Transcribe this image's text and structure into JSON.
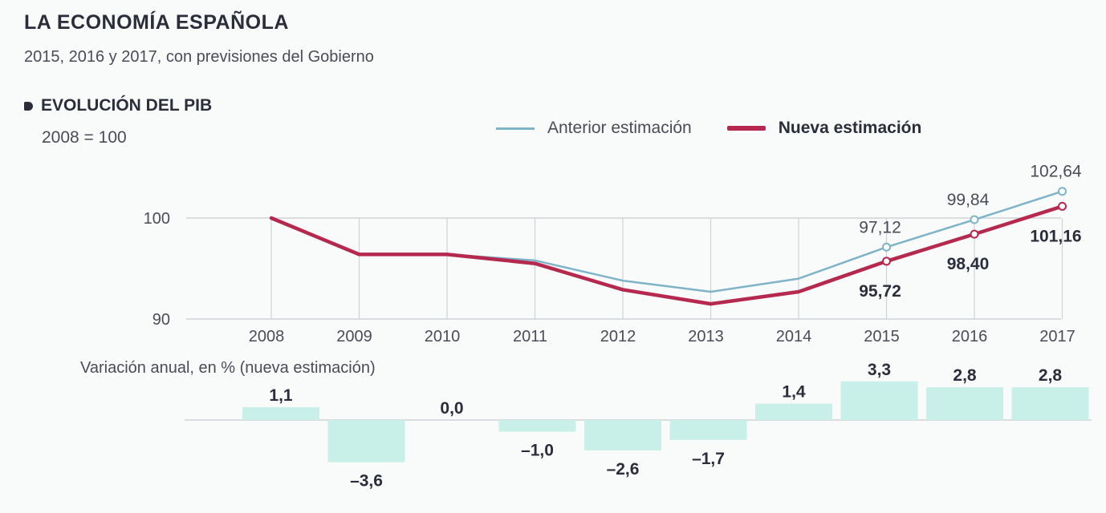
{
  "header": {
    "title": "LA ECONOMÍA ESPAÑOLA",
    "subtitle": "2015, 2016 y 2017, con previsiones del Gobierno"
  },
  "section": {
    "title": "EVOLUCIÓN DEL PIB",
    "base_label": "2008 = 100"
  },
  "legend": {
    "old": "Anterior estimación",
    "new": "Nueva estimación"
  },
  "variation_label": "Variación anual, en % (nueva estimación)",
  "colors": {
    "old_line": "#7eb3c8",
    "new_line": "#b5294e",
    "bar_fill": "#c8efe8",
    "grid": "#cfd3d6"
  },
  "chart_data": [
    {
      "type": "line",
      "title": "EVOLUCIÓN DEL PIB",
      "x": [
        "2008",
        "2009",
        "2010",
        "2011",
        "2012",
        "2013",
        "2014",
        "2015",
        "2016",
        "2017"
      ],
      "y_ticks": [
        "100",
        "90"
      ],
      "ylim": [
        90,
        104
      ],
      "series": [
        {
          "name": "Anterior estimación",
          "values": [
            100,
            96.4,
            96.4,
            95.8,
            93.8,
            92.7,
            94.0,
            97.12,
            99.84,
            102.64
          ],
          "labels": [
            "",
            "",
            "",
            "",
            "",
            "",
            "",
            "97,12",
            "99,84",
            "102,64"
          ]
        },
        {
          "name": "Nueva estimación",
          "values": [
            100,
            96.4,
            96.4,
            95.5,
            92.9,
            91.5,
            92.7,
            95.72,
            98.4,
            101.16
          ],
          "labels": [
            "",
            "",
            "",
            "",
            "",
            "",
            "",
            "95,72",
            "98,40",
            "101,16"
          ]
        }
      ],
      "grid": true
    },
    {
      "type": "bar",
      "title": "Variación anual, en % (nueva estimación)",
      "categories": [
        "2008",
        "2009",
        "2010",
        "2011",
        "2012",
        "2013",
        "2014",
        "2015",
        "2016",
        "2017"
      ],
      "values": [
        1.1,
        -3.6,
        0.0,
        -1.0,
        -2.6,
        -1.7,
        1.4,
        3.3,
        2.8,
        2.8
      ],
      "labels": [
        "1,1",
        "–3,6",
        "0,0",
        "–1,0",
        "–2,6",
        "–1,7",
        "1,4",
        "3,3",
        "2,8",
        "2,8"
      ]
    }
  ]
}
